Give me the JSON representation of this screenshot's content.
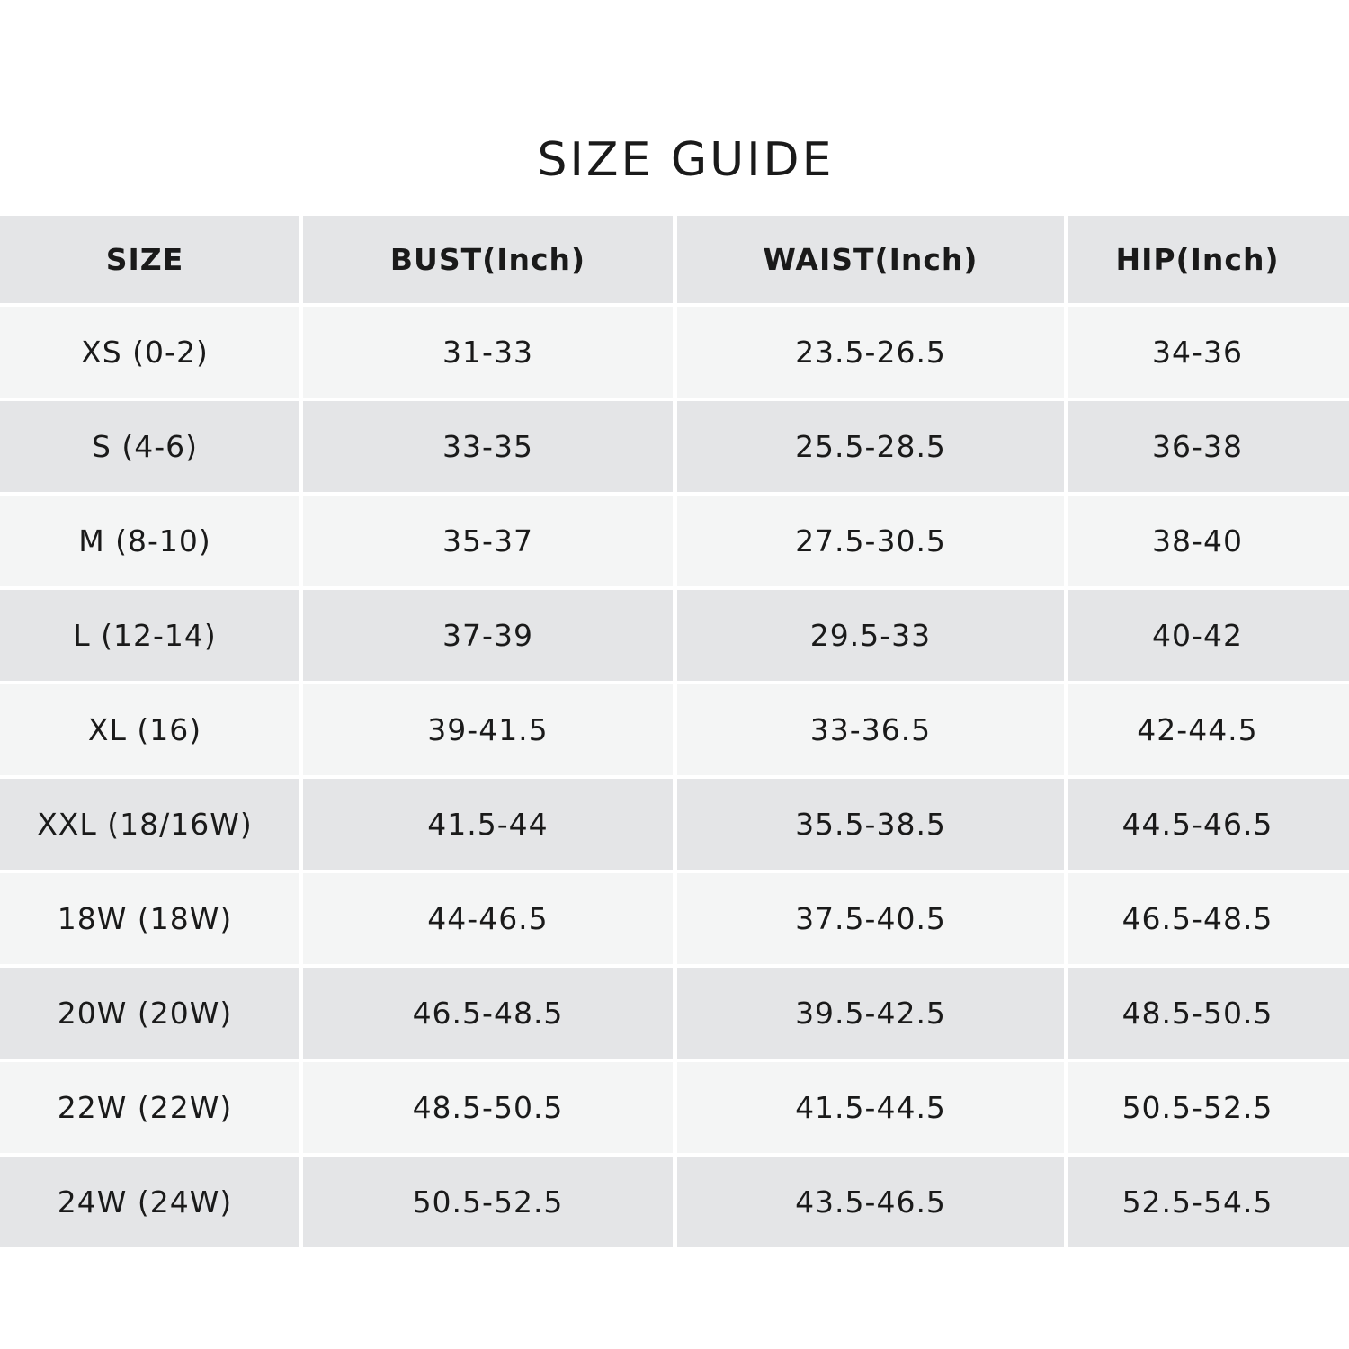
{
  "header": {
    "title": "SIZE GUIDE"
  },
  "table": {
    "columns": [
      "SIZE",
      "BUST(Inch)",
      "WAIST(Inch)",
      "HIP(Inch)"
    ],
    "rows": [
      [
        "XS (0-2)",
        "31-33",
        "23.5-26.5",
        "34-36"
      ],
      [
        "S (4-6)",
        "33-35",
        "25.5-28.5",
        "36-38"
      ],
      [
        "M (8-10)",
        "35-37",
        "27.5-30.5",
        "38-40"
      ],
      [
        "L (12-14)",
        "37-39",
        "29.5-33",
        "40-42"
      ],
      [
        "XL (16)",
        "39-41.5",
        "33-36.5",
        "42-44.5"
      ],
      [
        "XXL (18/16W)",
        "41.5-44",
        "35.5-38.5",
        "44.5-46.5"
      ],
      [
        "18W (18W)",
        "44-46.5",
        "37.5-40.5",
        "46.5-48.5"
      ],
      [
        "20W (20W)",
        "46.5-48.5",
        "39.5-42.5",
        "48.5-50.5"
      ],
      [
        "22W (22W)",
        "48.5-50.5",
        "41.5-44.5",
        "50.5-52.5"
      ],
      [
        "24W (24W)",
        "50.5-52.5",
        "43.5-46.5",
        "52.5-54.5"
      ]
    ]
  }
}
